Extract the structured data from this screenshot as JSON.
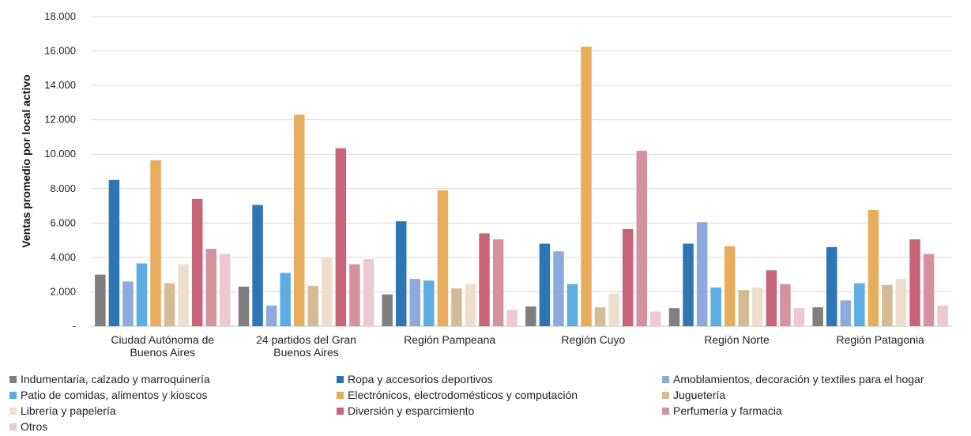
{
  "chart_data": {
    "type": "bar",
    "ylabel": "Ventas promedio por local activo",
    "ylim": [
      0,
      18000
    ],
    "yticks": [
      "-",
      "2.000",
      "4.000",
      "6.000",
      "8.000",
      "10.000",
      "12.000",
      "14.000",
      "16.000",
      "18.000"
    ],
    "grid": true,
    "legend_position": "bottom",
    "categories": [
      [
        "Ciudad Autónoma de",
        "Buenos Aires"
      ],
      [
        "24 partidos del Gran",
        "Buenos Aires"
      ],
      [
        "Región Pampeana"
      ],
      [
        "Región Cuyo"
      ],
      [
        "Región Norte"
      ],
      [
        "Región Patagonia"
      ]
    ],
    "series": [
      {
        "name": "Indumentaria, calzado y marroquinería",
        "color": "#7f7f7f",
        "values": [
          3000,
          2300,
          1850,
          1150,
          1050,
          1100
        ]
      },
      {
        "name": "Ropa y accesorios deportivos",
        "color": "#2e75b6",
        "values": [
          8500,
          7050,
          6100,
          4800,
          4800,
          4600
        ]
      },
      {
        "name": "Amoblamientos, decoración y textiles para el hogar",
        "color": "#8ea9db",
        "values": [
          2600,
          1200,
          2750,
          4350,
          6050,
          1500
        ]
      },
      {
        "name": "Patio de comidas, alimentos y kioscos",
        "color": "#5dade2",
        "values": [
          3650,
          3100,
          2650,
          2450,
          2250,
          2500
        ]
      },
      {
        "name": "Electrónicos, electrodomésticos y computación",
        "color": "#e6ad5c",
        "values": [
          9650,
          12300,
          7900,
          16250,
          4650,
          6750
        ]
      },
      {
        "name": "Juguetería",
        "color": "#d4bb96",
        "values": [
          2500,
          2350,
          2200,
          1100,
          2100,
          2400
        ]
      },
      {
        "name": "Librería y papelería",
        "color": "#eedfcc",
        "values": [
          3600,
          4000,
          2450,
          1900,
          2250,
          2750
        ]
      },
      {
        "name": "Diversión y esparcimiento",
        "color": "#c86478",
        "values": [
          7400,
          10350,
          5400,
          5650,
          3250,
          5050
        ]
      },
      {
        "name": "Perfumería y farmacia",
        "color": "#d6919f",
        "values": [
          4500,
          3600,
          5050,
          10200,
          2450,
          4200
        ]
      },
      {
        "name": "Otros",
        "color": "#edc8cf",
        "values": [
          4200,
          3900,
          950,
          850,
          1050,
          1200
        ]
      }
    ]
  }
}
